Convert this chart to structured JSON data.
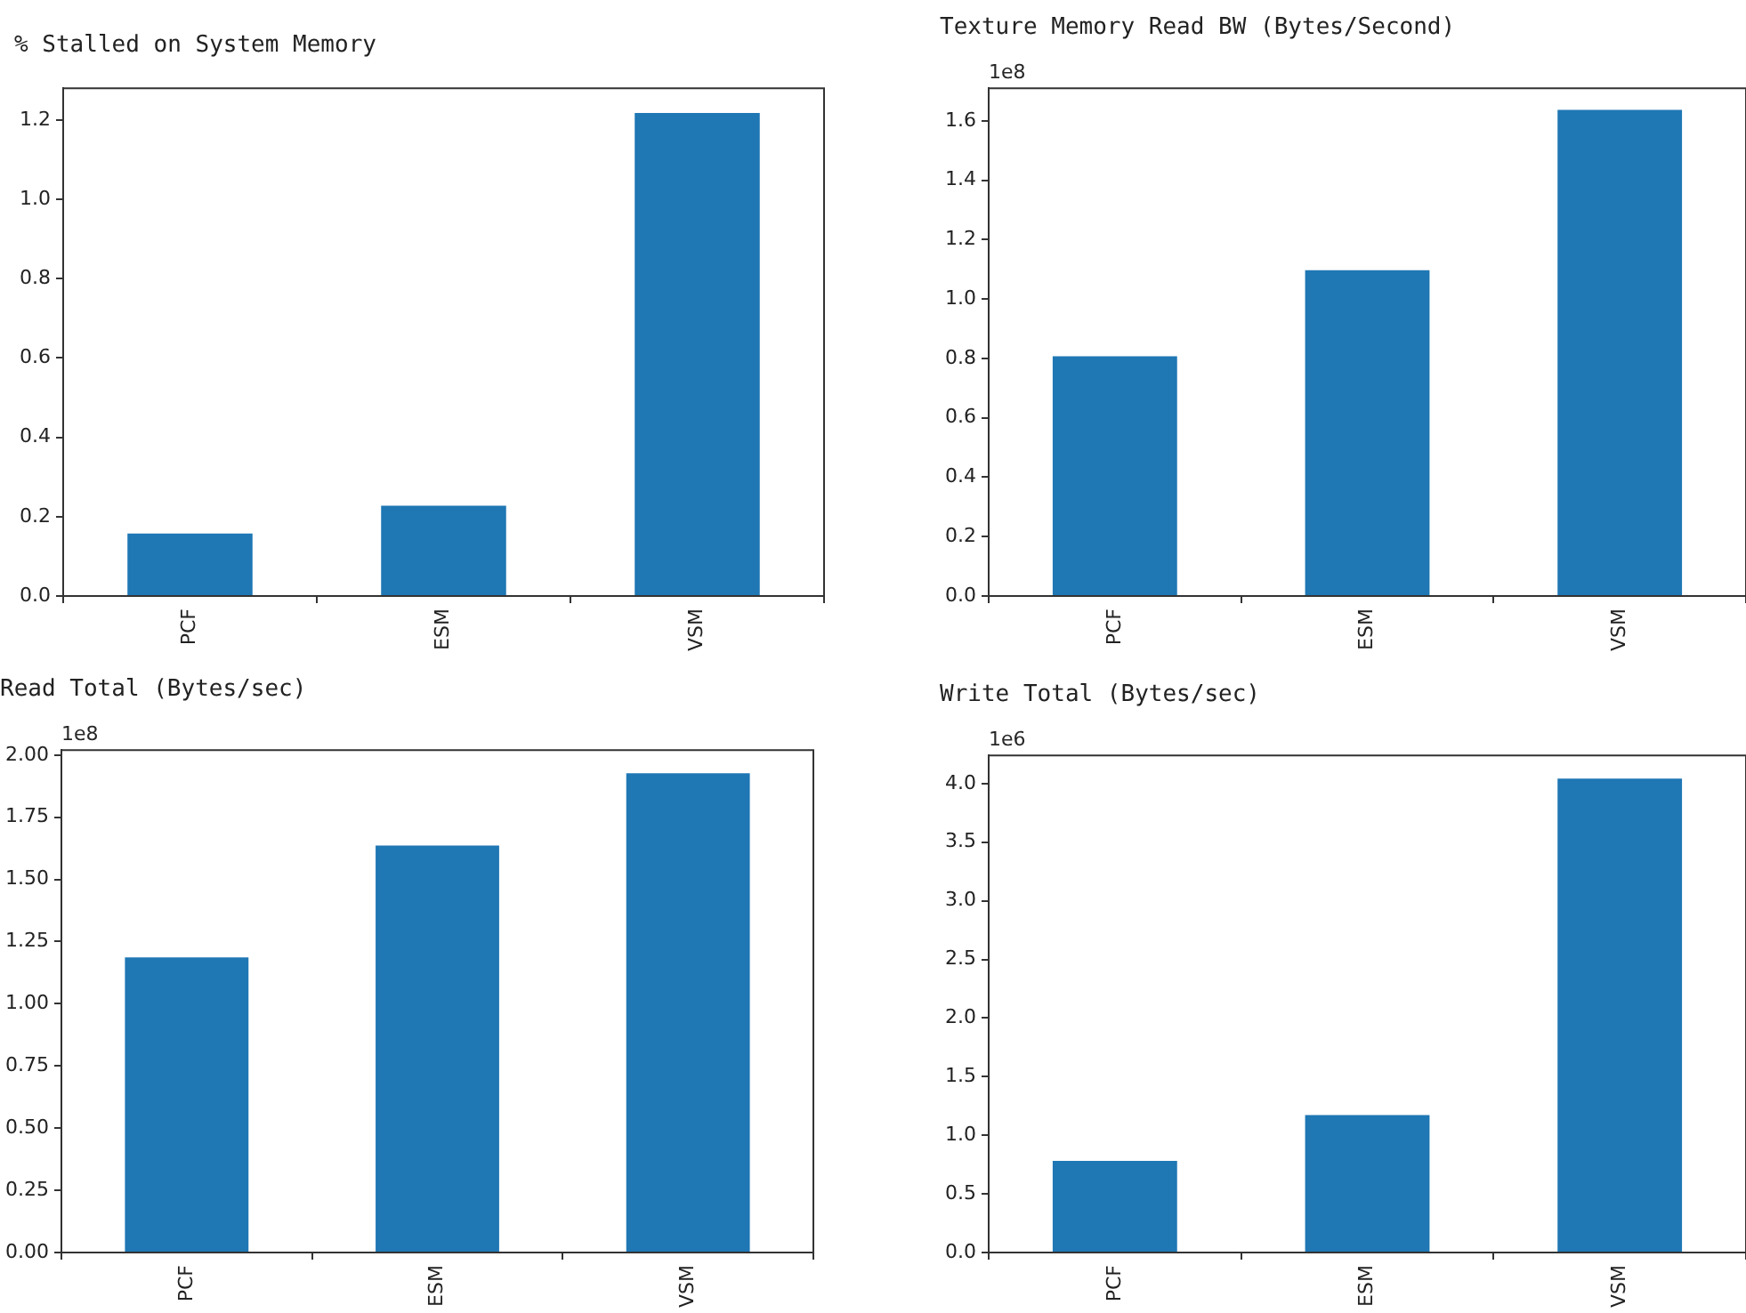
{
  "chart_data": [
    {
      "type": "bar",
      "title": "% Stalled on System Memory",
      "categories": [
        "PCF",
        "ESM",
        "VSM"
      ],
      "values": [
        0.16,
        0.23,
        1.22
      ],
      "color": "#1f77b4",
      "ylim": [
        0,
        1.28
      ],
      "yticks": [
        {
          "value": 0,
          "label": "0.0"
        },
        0.2,
        0.4,
        0.6,
        0.8,
        {
          "value": 1,
          "label": "1.0"
        },
        1.2
      ],
      "grid": false,
      "legend": false
    },
    {
      "type": "bar",
      "title": "Texture Memory Read BW (Bytes/Second)",
      "categories": [
        "PCF",
        "ESM",
        "VSM"
      ],
      "values": [
        0.81,
        1.1,
        1.64
      ],
      "color": "#1f77b4",
      "ylim": [
        0,
        1.71
      ],
      "yticks": [
        {
          "value": 0,
          "label": "0.0"
        },
        0.2,
        0.4,
        0.6,
        0.8,
        {
          "value": 1,
          "label": "1.0"
        },
        1.2,
        1.4,
        1.6
      ],
      "annotations": [
        "1e8"
      ],
      "grid": false,
      "legend": false
    },
    {
      "type": "bar",
      "title": "Read Total (Bytes/sec)",
      "categories": [
        "PCF",
        "ESM",
        "VSM"
      ],
      "values": [
        1.19,
        1.64,
        1.93
      ],
      "color": "#1f77b4",
      "ylim": [
        0,
        2.02
      ],
      "yticks": [
        {
          "value": 0,
          "label": "0.00"
        },
        0.25,
        {
          "value": 0.5,
          "label": "0.50"
        },
        0.75,
        {
          "value": 1,
          "label": "1.00"
        },
        1.25,
        {
          "value": 1.5,
          "label": "1.50"
        },
        1.75,
        {
          "value": 2,
          "label": "2.00"
        }
      ],
      "annotations": [
        "1e8"
      ],
      "grid": false,
      "legend": false
    },
    {
      "type": "bar",
      "title": "Write Total (Bytes/sec)",
      "categories": [
        "PCF",
        "ESM",
        "VSM"
      ],
      "values": [
        0.79,
        1.18,
        4.05
      ],
      "color": "#1f77b4",
      "ylim": [
        0,
        4.24
      ],
      "yticks": [
        {
          "value": 0,
          "label": "0.0"
        },
        0.5,
        {
          "value": 1,
          "label": "1.0"
        },
        1.5,
        {
          "value": 2,
          "label": "2.0"
        },
        2.5,
        {
          "value": 3,
          "label": "3.0"
        },
        3.5,
        {
          "value": 4,
          "label": "4.0"
        }
      ],
      "annotations": [
        "1e6"
      ],
      "grid": false,
      "legend": false
    }
  ]
}
